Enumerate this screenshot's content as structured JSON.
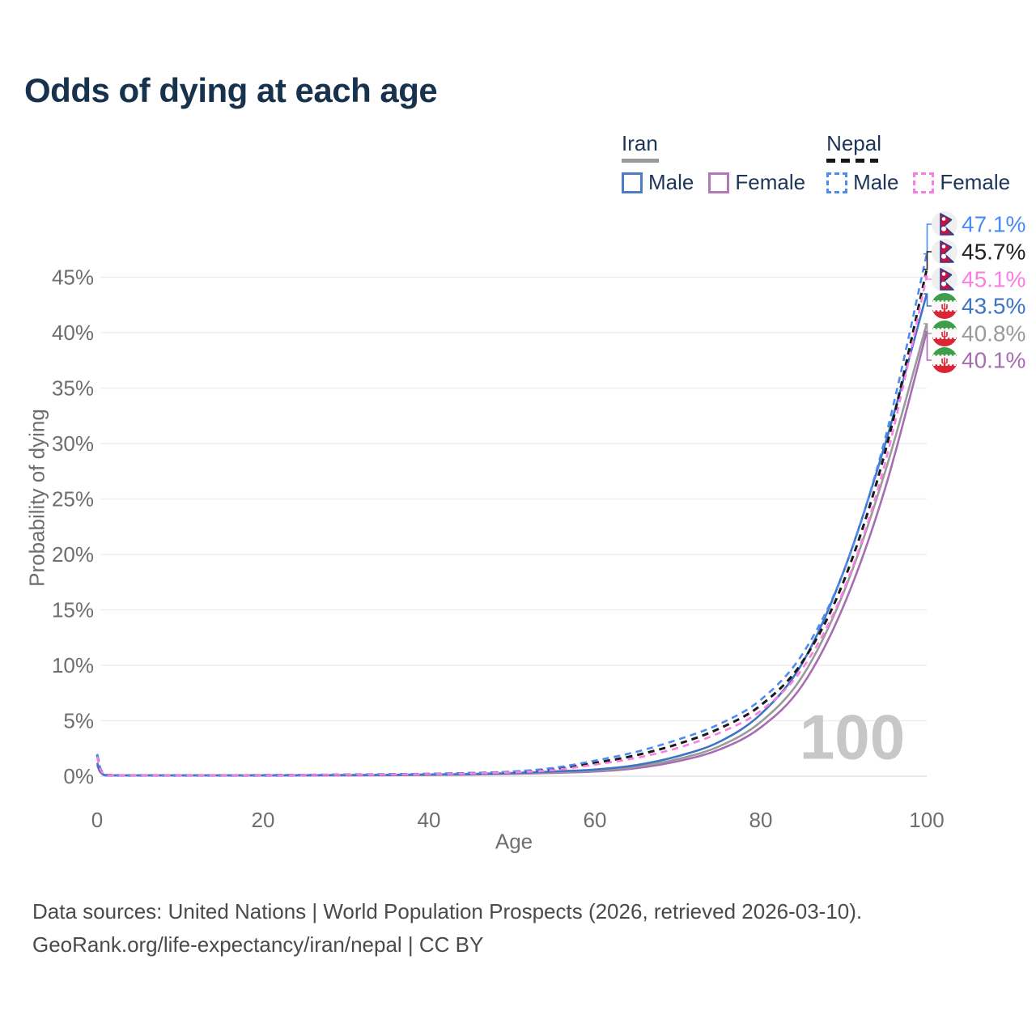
{
  "title": "Odds of dying at each age",
  "watermark": "100",
  "legend": {
    "groups": [
      {
        "label": "Iran",
        "line_style": "solid",
        "underline_color": "#9a9a9a",
        "items": [
          {
            "label": "Male",
            "color": "#4b7cc4"
          },
          {
            "label": "Female",
            "color": "#b478b8"
          }
        ]
      },
      {
        "label": "Nepal",
        "line_style": "dashed",
        "underline_color": "#161616",
        "items": [
          {
            "label": "Male",
            "color": "#4b8bf5"
          },
          {
            "label": "Female",
            "color": "#fb7de4"
          }
        ]
      }
    ]
  },
  "chart_data": {
    "type": "line",
    "title": "Odds of dying at each age",
    "xlabel": "Age",
    "ylabel": "Probability of dying",
    "xlim": [
      0,
      100
    ],
    "ylim": [
      0,
      47.5
    ],
    "xticks": [
      0,
      20,
      40,
      60,
      80,
      100
    ],
    "yticks": [
      0,
      5,
      10,
      15,
      20,
      25,
      30,
      35,
      40,
      45
    ],
    "ytick_suffix": "%",
    "grid": true,
    "legend_position": "top-right",
    "x": [
      0,
      1,
      5,
      10,
      15,
      20,
      25,
      30,
      35,
      40,
      45,
      50,
      55,
      60,
      65,
      70,
      75,
      80,
      85,
      90,
      95,
      100
    ],
    "series": [
      {
        "name": "Nepal Male",
        "country": "Nepal",
        "sex": "Male",
        "color": "#4b8bf5",
        "dash": true,
        "flag": "nepal",
        "end_label": "47.1%",
        "label_color": "#4b8bf5",
        "values": [
          2.0,
          0.12,
          0.06,
          0.05,
          0.07,
          0.1,
          0.12,
          0.14,
          0.17,
          0.22,
          0.29,
          0.42,
          0.75,
          1.4,
          2.2,
          3.3,
          4.7,
          6.9,
          11.0,
          18.5,
          30.5,
          47.1
        ]
      },
      {
        "name": "Nepal",
        "country": "Nepal",
        "sex": "Both",
        "color": "#1a1a1a",
        "dash": true,
        "flag": "nepal",
        "end_label": "45.7%",
        "label_color": "#222222",
        "values": [
          1.9,
          0.11,
          0.055,
          0.045,
          0.065,
          0.09,
          0.11,
          0.13,
          0.16,
          0.2,
          0.27,
          0.38,
          0.65,
          1.2,
          1.9,
          2.9,
          4.3,
          6.4,
          10.3,
          17.6,
          29.3,
          45.7
        ]
      },
      {
        "name": "Nepal Female",
        "country": "Nepal",
        "sex": "Female",
        "color": "#fb7de4",
        "dash": true,
        "flag": "nepal",
        "end_label": "45.1%",
        "label_color": "#fb7de4",
        "values": [
          1.75,
          0.1,
          0.05,
          0.04,
          0.06,
          0.08,
          0.1,
          0.12,
          0.14,
          0.18,
          0.24,
          0.34,
          0.55,
          1.05,
          1.65,
          2.55,
          3.9,
          5.9,
          9.7,
          16.8,
          28.3,
          45.1
        ]
      },
      {
        "name": "Iran Male",
        "country": "Iran",
        "sex": "Male",
        "color": "#3d74c4",
        "dash": false,
        "flag": "iran",
        "end_label": "43.5%",
        "label_color": "#3d74c4",
        "values": [
          1.2,
          0.07,
          0.04,
          0.03,
          0.05,
          0.08,
          0.09,
          0.1,
          0.12,
          0.15,
          0.2,
          0.28,
          0.42,
          0.6,
          1.0,
          1.8,
          3.1,
          5.6,
          10.2,
          18.5,
          30.0,
          43.5
        ]
      },
      {
        "name": "Iran",
        "country": "Iran",
        "sex": "Both",
        "color": "#9a9a9a",
        "dash": false,
        "flag": "iran",
        "end_label": "40.8%",
        "label_color": "#9a9a9a",
        "values": [
          1.1,
          0.06,
          0.035,
          0.028,
          0.04,
          0.06,
          0.07,
          0.08,
          0.1,
          0.13,
          0.17,
          0.24,
          0.35,
          0.5,
          0.85,
          1.55,
          2.7,
          4.9,
          9.0,
          16.6,
          27.5,
          40.8
        ]
      },
      {
        "name": "Iran Female",
        "country": "Iran",
        "sex": "Female",
        "color": "#a76db3",
        "dash": false,
        "flag": "iran",
        "end_label": "40.1%",
        "label_color": "#a76db3",
        "values": [
          1.0,
          0.055,
          0.03,
          0.025,
          0.035,
          0.05,
          0.06,
          0.07,
          0.09,
          0.11,
          0.15,
          0.21,
          0.3,
          0.42,
          0.72,
          1.35,
          2.4,
          4.4,
          8.2,
          15.4,
          26.0,
          40.1
        ]
      }
    ]
  },
  "footer": {
    "line1": "Data sources: United Nations | World Population Prospects (2026, retrieved 2026-03-10).",
    "line2": "GeoRank.org/life-expectancy/iran/nepal | CC BY"
  }
}
